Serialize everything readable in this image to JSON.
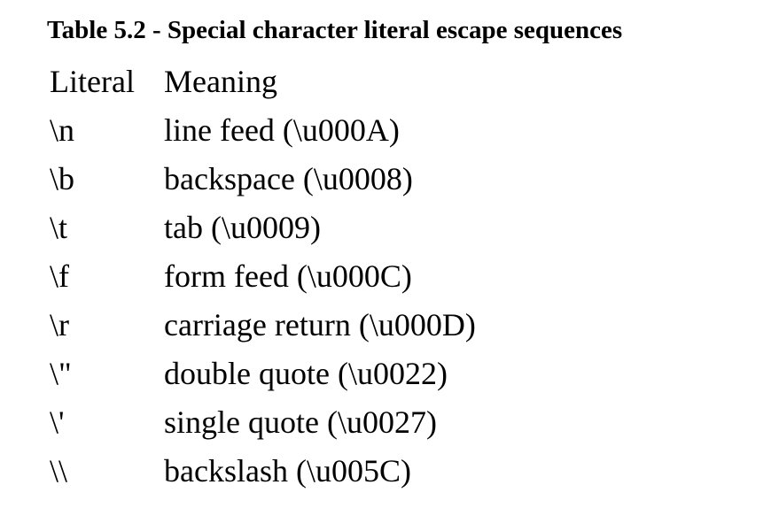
{
  "caption": "Table 5.2 - Special character literal escape sequences",
  "table": {
    "headers": {
      "literal": "Literal",
      "meaning": "Meaning"
    },
    "rows": [
      {
        "literal": "\\n",
        "meaning": "line feed (\\u000A)"
      },
      {
        "literal": "\\b",
        "meaning": "backspace (\\u0008)"
      },
      {
        "literal": "\\t",
        "meaning": "tab (\\u0009)"
      },
      {
        "literal": "\\f",
        "meaning": "form feed (\\u000C)"
      },
      {
        "literal": "\\r",
        "meaning": "carriage return (\\u000D)"
      },
      {
        "literal": "\\\"",
        "meaning": "double quote (\\u0022)"
      },
      {
        "literal": "\\'",
        "meaning": "single quote (\\u0027)"
      },
      {
        "literal": "\\\\",
        "meaning": "backslash (\\u005C)"
      }
    ]
  }
}
